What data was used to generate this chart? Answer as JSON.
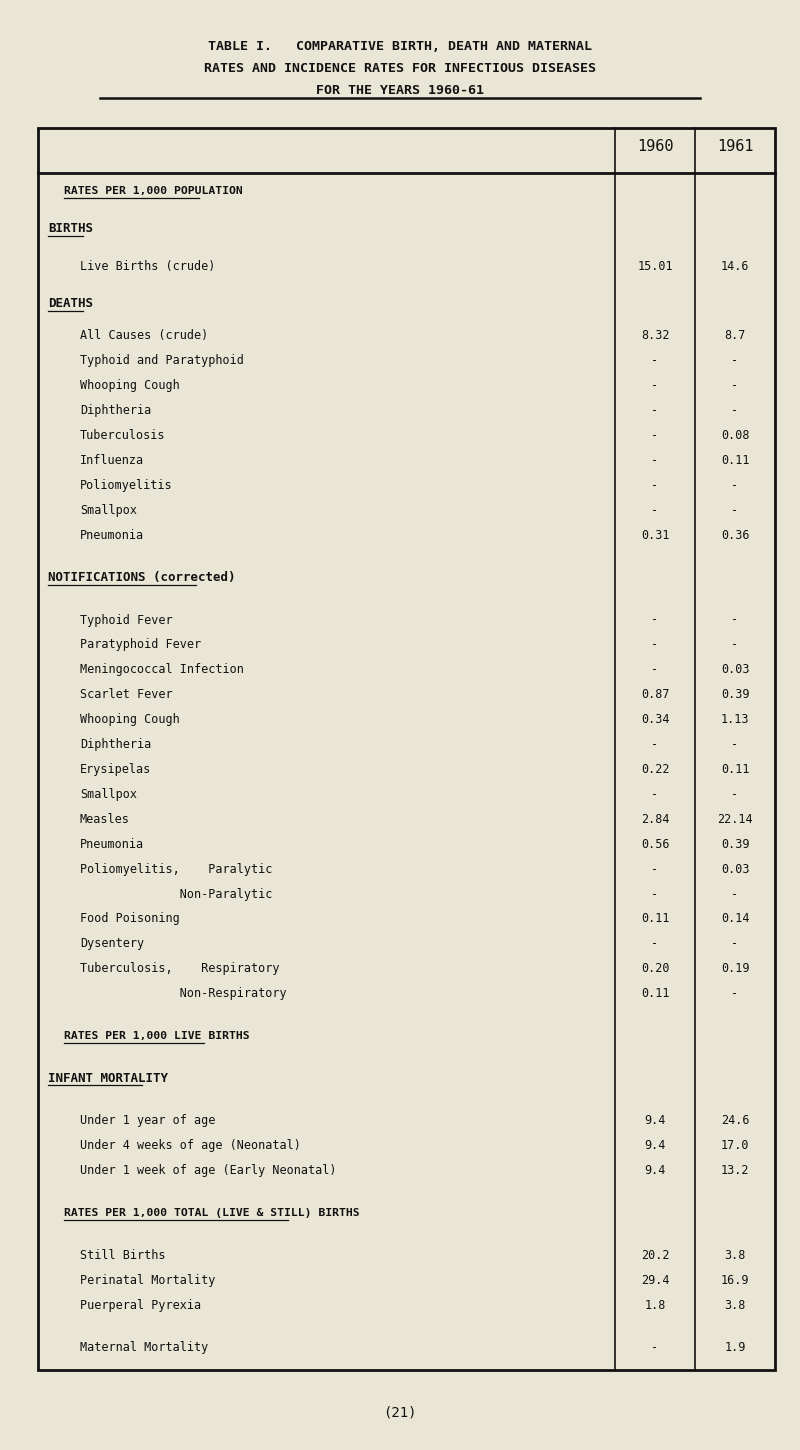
{
  "title_line1": "TABLE I.   COMPARATIVE BIRTH, DEATH AND MATERNAL",
  "title_line2": "RATES AND INCIDENCE RATES FOR INFECTIOUS DISEASES",
  "title_line3": "FOR THE YEARS 1960-61",
  "footer": "(21)",
  "bg_color": "#eae6d6",
  "sections": [
    {
      "type": "section_header",
      "text": "RATES PER 1,000 POPULATION",
      "indent": 1
    },
    {
      "type": "blank_row",
      "size": 0.5
    },
    {
      "type": "category_header",
      "text": "BIRTHS",
      "indent": 0
    },
    {
      "type": "blank_row",
      "size": 0.5
    },
    {
      "type": "data_row",
      "label": "Live Births (crude)",
      "indent": 2,
      "v1960": "15.01",
      "v1961": "14.6"
    },
    {
      "type": "blank_row",
      "size": 0.5
    },
    {
      "type": "category_header",
      "text": "DEATHS",
      "indent": 0
    },
    {
      "type": "blank_row",
      "size": 0.3
    },
    {
      "type": "data_row",
      "label": "All Causes (crude)",
      "indent": 2,
      "v1960": "8.32",
      "v1961": "8.7"
    },
    {
      "type": "data_row",
      "label": "Typhoid and Paratyphoid",
      "indent": 2,
      "v1960": "-",
      "v1961": "-"
    },
    {
      "type": "data_row",
      "label": "Whooping Cough",
      "indent": 2,
      "v1960": "-",
      "v1961": "-"
    },
    {
      "type": "data_row",
      "label": "Diphtheria",
      "indent": 2,
      "v1960": "-",
      "v1961": "-"
    },
    {
      "type": "data_row",
      "label": "Tuberculosis",
      "indent": 2,
      "v1960": "-",
      "v1961": "0.08"
    },
    {
      "type": "data_row",
      "label": "Influenza",
      "indent": 2,
      "v1960": "-",
      "v1961": "0.11"
    },
    {
      "type": "data_row",
      "label": "Poliomyelitis",
      "indent": 2,
      "v1960": "-",
      "v1961": "-"
    },
    {
      "type": "data_row",
      "label": "Smallpox",
      "indent": 2,
      "v1960": "-",
      "v1961": "-"
    },
    {
      "type": "data_row",
      "label": "Pneumonia",
      "indent": 2,
      "v1960": "0.31",
      "v1961": "0.36"
    },
    {
      "type": "blank_row",
      "size": 0.7
    },
    {
      "type": "category_header",
      "text": "NOTIFICATIONS (corrected)",
      "indent": 0
    },
    {
      "type": "blank_row",
      "size": 0.7
    },
    {
      "type": "data_row",
      "label": "Typhoid Fever",
      "indent": 2,
      "v1960": "-",
      "v1961": "-"
    },
    {
      "type": "data_row",
      "label": "Paratyphoid Fever",
      "indent": 2,
      "v1960": "-",
      "v1961": "-"
    },
    {
      "type": "data_row",
      "label": "Meningococcal Infection",
      "indent": 2,
      "v1960": "-",
      "v1961": "0.03"
    },
    {
      "type": "data_row",
      "label": "Scarlet Fever",
      "indent": 2,
      "v1960": "0.87",
      "v1961": "0.39"
    },
    {
      "type": "data_row",
      "label": "Whooping Cough",
      "indent": 2,
      "v1960": "0.34",
      "v1961": "1.13"
    },
    {
      "type": "data_row",
      "label": "Diphtheria",
      "indent": 2,
      "v1960": "-",
      "v1961": "-"
    },
    {
      "type": "data_row",
      "label": "Erysipelas",
      "indent": 2,
      "v1960": "0.22",
      "v1961": "0.11"
    },
    {
      "type": "data_row",
      "label": "Smallpox",
      "indent": 2,
      "v1960": "-",
      "v1961": "-"
    },
    {
      "type": "data_row",
      "label": "Measles",
      "indent": 2,
      "v1960": "2.84",
      "v1961": "22.14"
    },
    {
      "type": "data_row",
      "label": "Pneumonia",
      "indent": 2,
      "v1960": "0.56",
      "v1961": "0.39"
    },
    {
      "type": "data_row",
      "label": "Poliomyelitis,    Paralytic",
      "indent": 2,
      "v1960": "-",
      "v1961": "0.03"
    },
    {
      "type": "data_row",
      "label": "              Non-Paralytic",
      "indent": 2,
      "v1960": "-",
      "v1961": "-"
    },
    {
      "type": "data_row",
      "label": "Food Poisoning",
      "indent": 2,
      "v1960": "0.11",
      "v1961": "0.14"
    },
    {
      "type": "data_row",
      "label": "Dysentery",
      "indent": 2,
      "v1960": "-",
      "v1961": "-"
    },
    {
      "type": "data_row",
      "label": "Tuberculosis,    Respiratory",
      "indent": 2,
      "v1960": "0.20",
      "v1961": "0.19"
    },
    {
      "type": "data_row",
      "label": "              Non-Respiratory",
      "indent": 2,
      "v1960": "0.11",
      "v1961": "-"
    },
    {
      "type": "blank_row",
      "size": 0.7
    },
    {
      "type": "section_header",
      "text": "RATES PER 1,000 LIVE BIRTHS",
      "indent": 1
    },
    {
      "type": "blank_row",
      "size": 0.7
    },
    {
      "type": "category_header",
      "text": "INFANT MORTALITY",
      "indent": 0
    },
    {
      "type": "blank_row",
      "size": 0.7
    },
    {
      "type": "data_row",
      "label": "Under 1 year of age",
      "indent": 2,
      "v1960": "9.4",
      "v1961": "24.6"
    },
    {
      "type": "data_row",
      "label": "Under 4 weeks of age (Neonatal)",
      "indent": 2,
      "v1960": "9.4",
      "v1961": "17.0"
    },
    {
      "type": "data_row",
      "label": "Under 1 week of age (Early Neonatal)",
      "indent": 2,
      "v1960": "9.4",
      "v1961": "13.2"
    },
    {
      "type": "blank_row",
      "size": 0.7
    },
    {
      "type": "section_header",
      "text": "RATES PER 1,000 TOTAL (LIVE & STILL) BIRTHS",
      "indent": 1
    },
    {
      "type": "blank_row",
      "size": 0.7
    },
    {
      "type": "data_row",
      "label": "Still Births",
      "indent": 2,
      "v1960": "20.2",
      "v1961": "3.8"
    },
    {
      "type": "data_row",
      "label": "Perinatal Mortality",
      "indent": 2,
      "v1960": "29.4",
      "v1961": "16.9"
    },
    {
      "type": "data_row",
      "label": "Puerperal Pyrexia",
      "indent": 2,
      "v1960": "1.8",
      "v1961": "3.8"
    },
    {
      "type": "blank_row",
      "size": 0.7
    },
    {
      "type": "data_row",
      "label": "Maternal Mortality",
      "indent": 2,
      "v1960": "-",
      "v1961": "1.9"
    }
  ]
}
